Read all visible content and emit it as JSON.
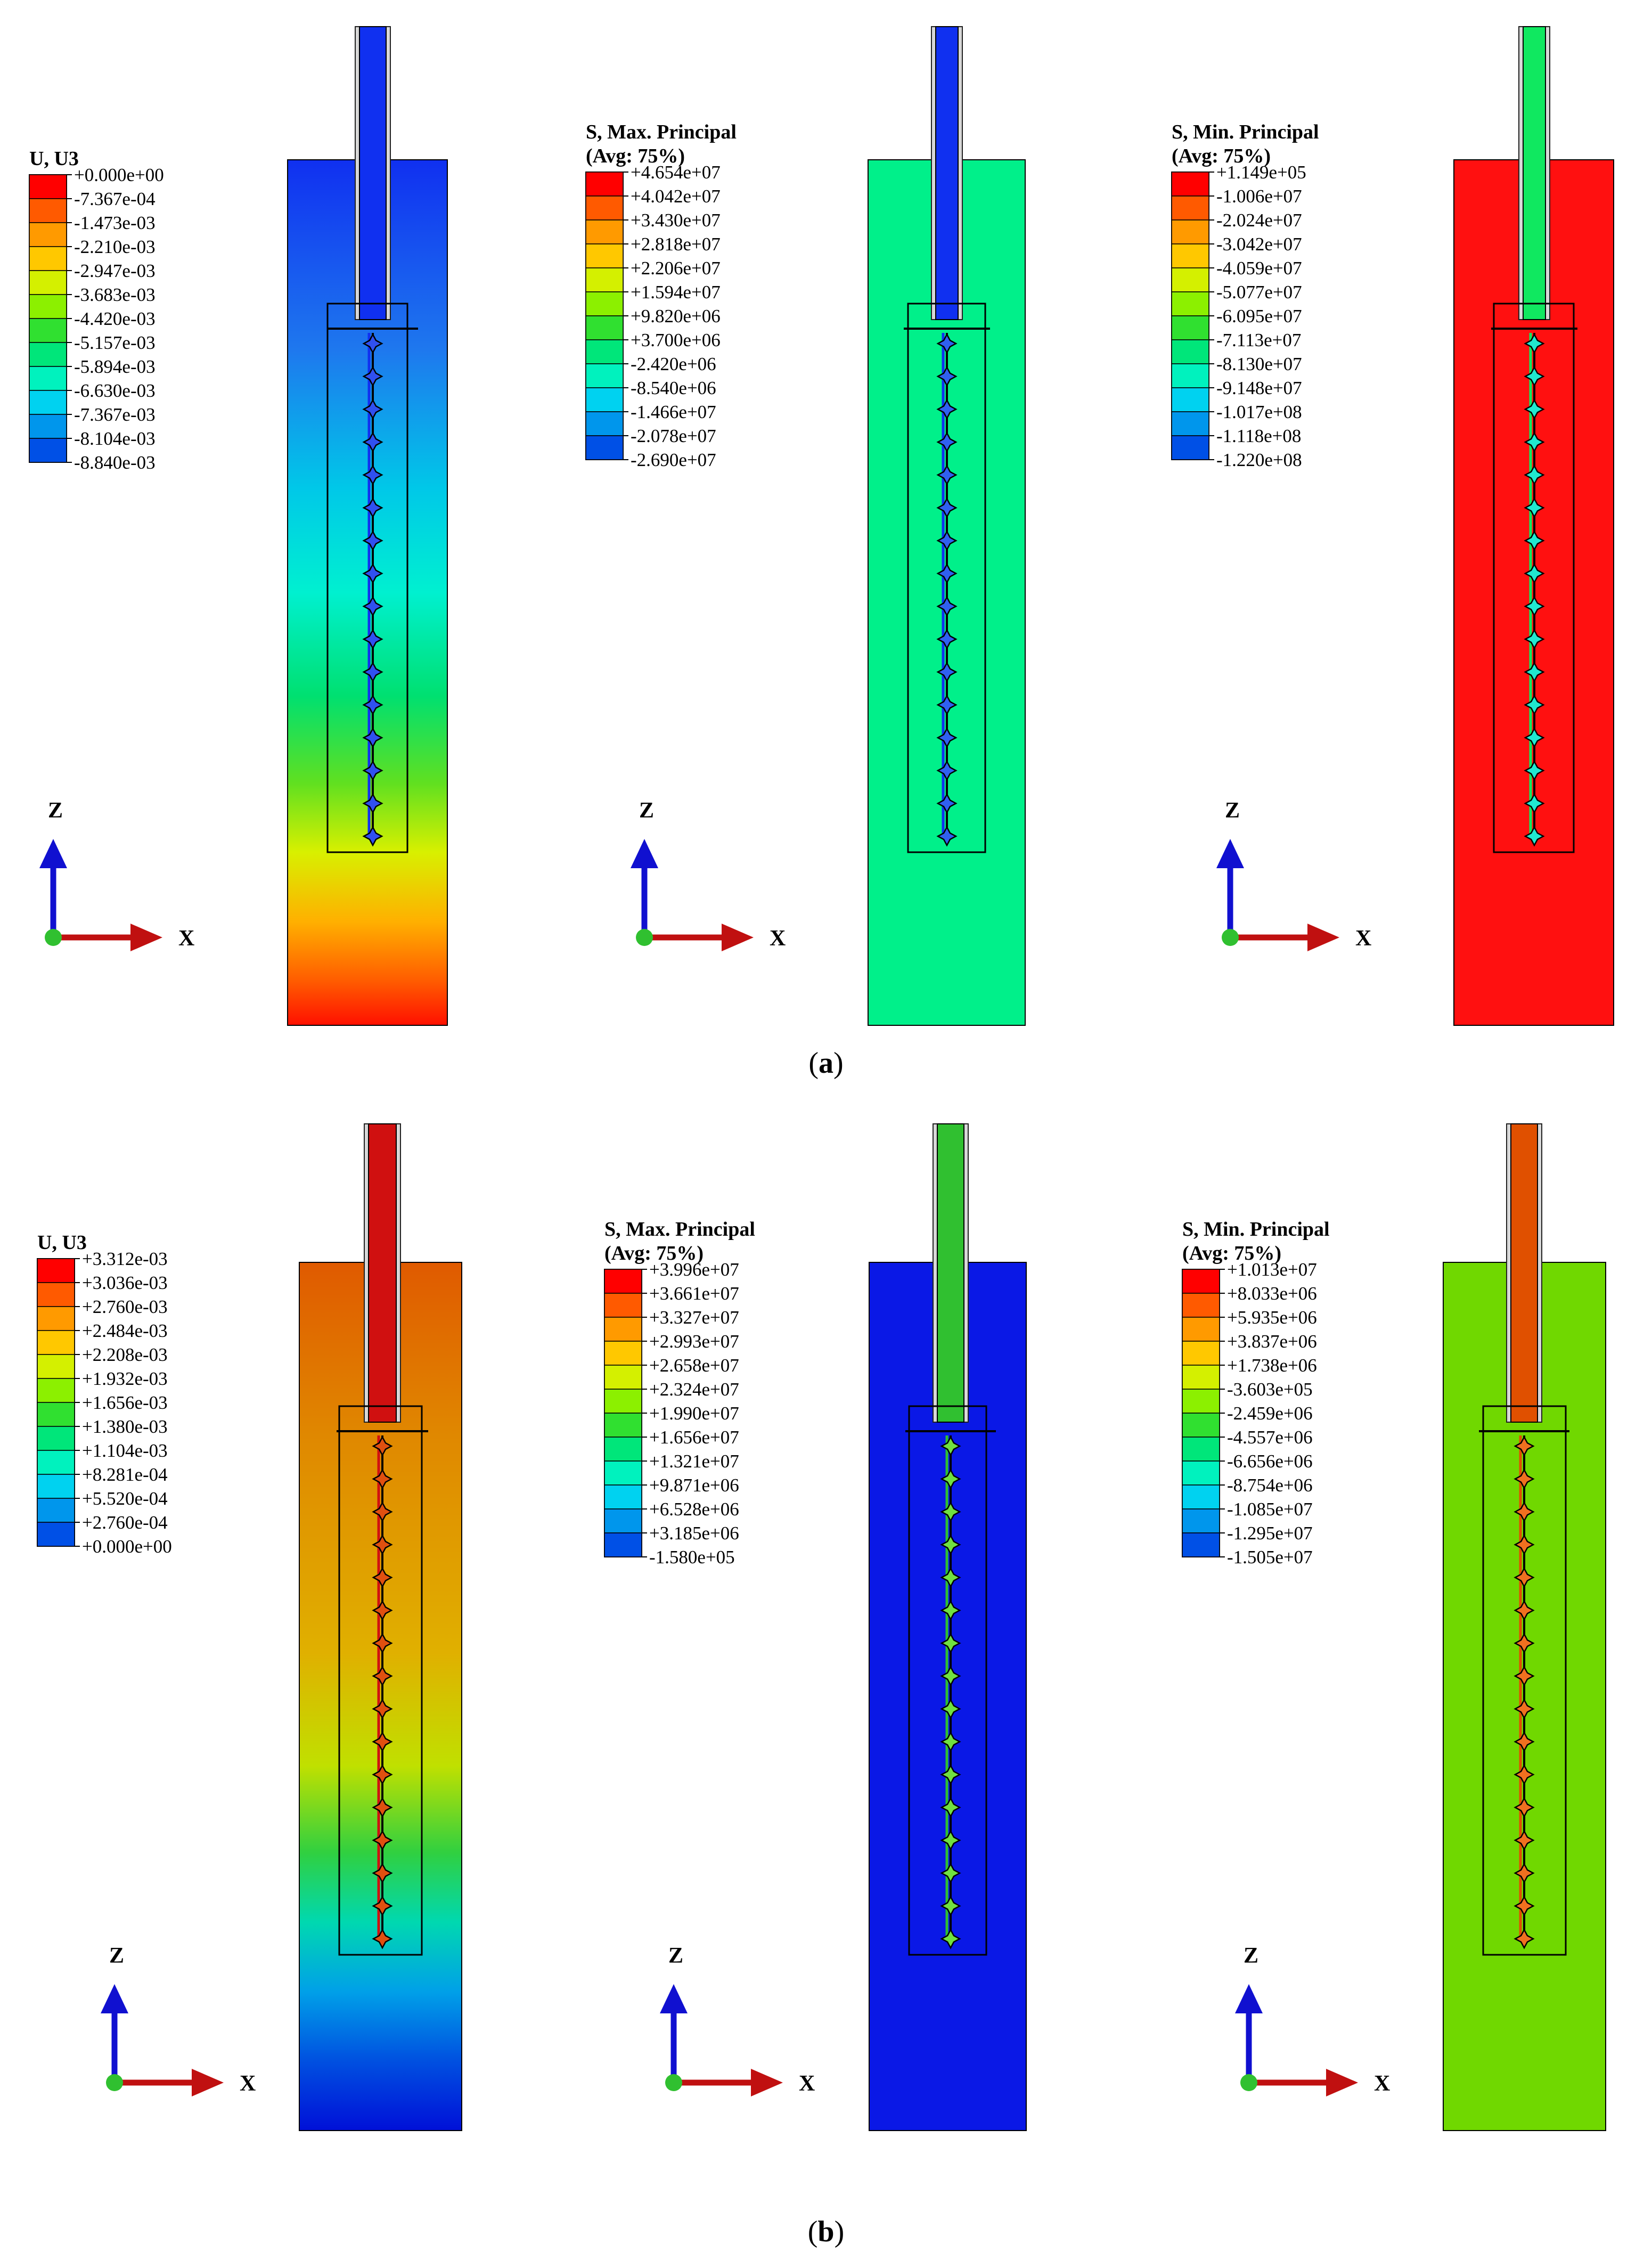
{
  "panels": [
    {
      "caption_letter": "a",
      "plots": [
        {
          "legend_title": [
            "U, U3"
          ],
          "legend_values": [
            "+0.000e+00",
            "-7.367e-04",
            "-1.473e-03",
            "-2.210e-03",
            "-2.947e-03",
            "-3.683e-03",
            "-4.420e-03",
            "-5.157e-03",
            "-5.894e-03",
            "-6.630e-03",
            "-7.367e-03",
            "-8.104e-03",
            "-8.840e-03"
          ],
          "axis_labels": {
            "z": "Z",
            "x": "X"
          }
        },
        {
          "legend_title": [
            "S, Max. Principal",
            "(Avg: 75%)"
          ],
          "legend_values": [
            "+4.654e+07",
            "+4.042e+07",
            "+3.430e+07",
            "+2.818e+07",
            "+2.206e+07",
            "+1.594e+07",
            "+9.820e+06",
            "+3.700e+06",
            "-2.420e+06",
            "-8.540e+06",
            "-1.466e+07",
            "-2.078e+07",
            "-2.690e+07"
          ],
          "axis_labels": {
            "z": "Z",
            "x": "X"
          }
        },
        {
          "legend_title": [
            "S, Min. Principal",
            "(Avg: 75%)"
          ],
          "legend_values": [
            "+1.149e+05",
            "-1.006e+07",
            "-2.024e+07",
            "-3.042e+07",
            "-4.059e+07",
            "-5.077e+07",
            "-6.095e+07",
            "-7.113e+07",
            "-8.130e+07",
            "-9.148e+07",
            "-1.017e+08",
            "-1.118e+08",
            "-1.220e+08"
          ],
          "axis_labels": {
            "z": "Z",
            "x": "X"
          }
        }
      ]
    },
    {
      "caption_letter": "b",
      "plots": [
        {
          "legend_title": [
            "U, U3"
          ],
          "legend_values": [
            "+3.312e-03",
            "+3.036e-03",
            "+2.760e-03",
            "+2.484e-03",
            "+2.208e-03",
            "+1.932e-03",
            "+1.656e-03",
            "+1.380e-03",
            "+1.104e-03",
            "+8.281e-04",
            "+5.520e-04",
            "+2.760e-04",
            "+0.000e+00"
          ],
          "axis_labels": {
            "z": "Z",
            "x": "X"
          }
        },
        {
          "legend_title": [
            "S, Max. Principal",
            "(Avg: 75%)"
          ],
          "legend_values": [
            "+3.996e+07",
            "+3.661e+07",
            "+3.327e+07",
            "+2.993e+07",
            "+2.658e+07",
            "+2.324e+07",
            "+1.990e+07",
            "+1.656e+07",
            "+1.321e+07",
            "+9.871e+06",
            "+6.528e+06",
            "+3.185e+06",
            "-1.580e+05"
          ],
          "axis_labels": {
            "z": "Z",
            "x": "X"
          }
        },
        {
          "legend_title": [
            "S, Min. Principal",
            "(Avg: 75%)"
          ],
          "legend_values": [
            "+1.013e+07",
            "+8.033e+06",
            "+5.935e+06",
            "+3.837e+06",
            "+1.738e+06",
            "-3.603e+05",
            "-2.459e+06",
            "-4.557e+06",
            "-6.656e+06",
            "-8.754e+06",
            "-1.085e+07",
            "-1.295e+07",
            "-1.505e+07"
          ],
          "axis_labels": {
            "z": "Z",
            "x": "X"
          }
        }
      ]
    }
  ],
  "colormap": [
    "#ff0000",
    "#ff5a00",
    "#ff9a00",
    "#ffc800",
    "#d4f000",
    "#8cf000",
    "#30e030",
    "#00e67a",
    "#00f2be",
    "#00d2f0",
    "#0096ec",
    "#0050e6",
    "#0010f0"
  ],
  "colors": {
    "axis_z": "#1010d0",
    "axis_x": "#c01010",
    "origin": "#30c030"
  }
}
